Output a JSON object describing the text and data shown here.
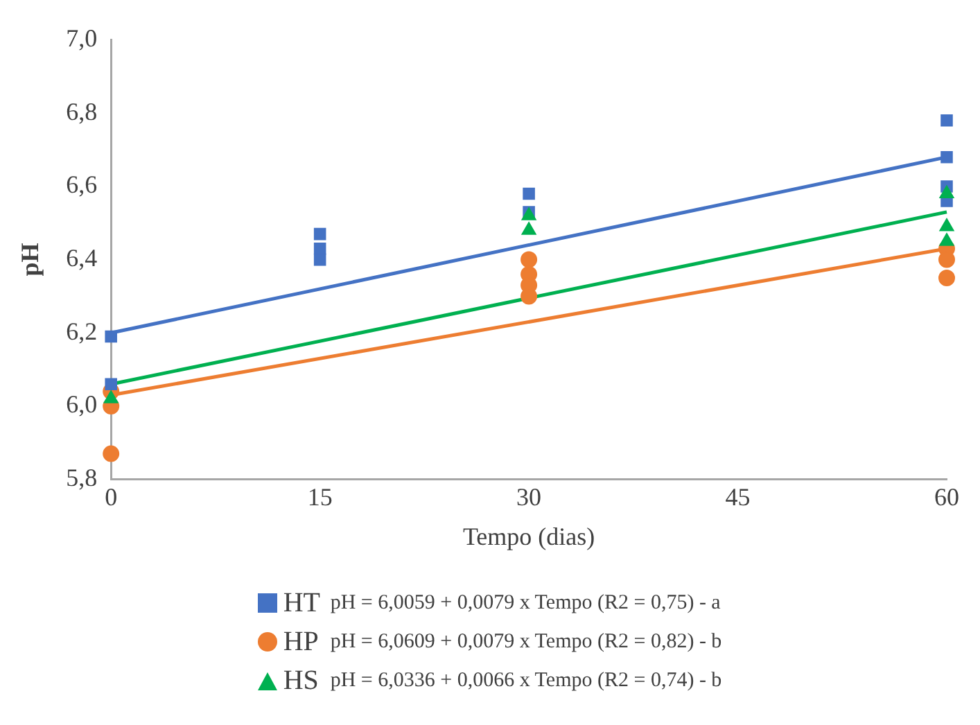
{
  "chart_data": {
    "type": "scatter",
    "xlabel": "Tempo (dias)",
    "ylabel": "pH",
    "xlim": [
      0,
      60
    ],
    "xticks": [
      0,
      15,
      30,
      45,
      60
    ],
    "ylim": [
      5.8,
      7.0
    ],
    "yticks": [
      {
        "value": 5.8,
        "label": "5,8"
      },
      {
        "value": 6.0,
        "label": "6,0"
      },
      {
        "value": 6.2,
        "label": "6,2"
      },
      {
        "value": 6.4,
        "label": "6,4"
      },
      {
        "value": 6.6,
        "label": "6,6"
      },
      {
        "value": 6.8,
        "label": "6,8"
      },
      {
        "value": 7.0,
        "label": "7,0"
      }
    ],
    "grid": false,
    "legend": "bottom",
    "series": [
      {
        "name": "HT",
        "color": "#4472c4",
        "marker": "square",
        "x": [
          0,
          0,
          15,
          15,
          15,
          30,
          30,
          60,
          60,
          60,
          60
        ],
        "values": [
          6.19,
          6.06,
          6.47,
          6.43,
          6.4,
          6.58,
          6.53,
          6.78,
          6.68,
          6.6,
          6.56
        ]
      },
      {
        "name": "HP",
        "color": "#ed7d31",
        "marker": "circle",
        "x": [
          0,
          0,
          0,
          30,
          30,
          30,
          30,
          60,
          60,
          60
        ],
        "values": [
          6.04,
          6.0,
          5.87,
          6.4,
          6.36,
          6.33,
          6.3,
          6.43,
          6.4,
          6.35
        ]
      },
      {
        "name": "HS",
        "color": "#00b050",
        "marker": "triangle",
        "x": [
          0,
          30,
          30,
          60,
          60,
          60
        ],
        "values": [
          6.02,
          6.52,
          6.48,
          6.58,
          6.49,
          6.45
        ]
      },
      {
        "type": "line",
        "color": "#4472c4",
        "marker": "none",
        "x": [
          0,
          60
        ],
        "values": [
          6.2,
          6.68
        ]
      },
      {
        "type": "line",
        "color": "#ed7d31",
        "marker": "none",
        "x": [
          0,
          60
        ],
        "values": [
          6.03,
          6.43
        ]
      },
      {
        "type": "line",
        "color": "#00b050",
        "marker": "none",
        "x": [
          0,
          60
        ],
        "values": [
          6.06,
          6.53
        ]
      }
    ],
    "annotations": [
      "pH = 6,0059 + 0,0079 x Tempo (R2 = 0,75) - a",
      "pH = 6,0609 + 0,0079 x Tempo (R2 = 0,82) - b",
      "pH = 6,0336 + 0,0066 x Tempo (R2 = 0,74) - b"
    ]
  }
}
